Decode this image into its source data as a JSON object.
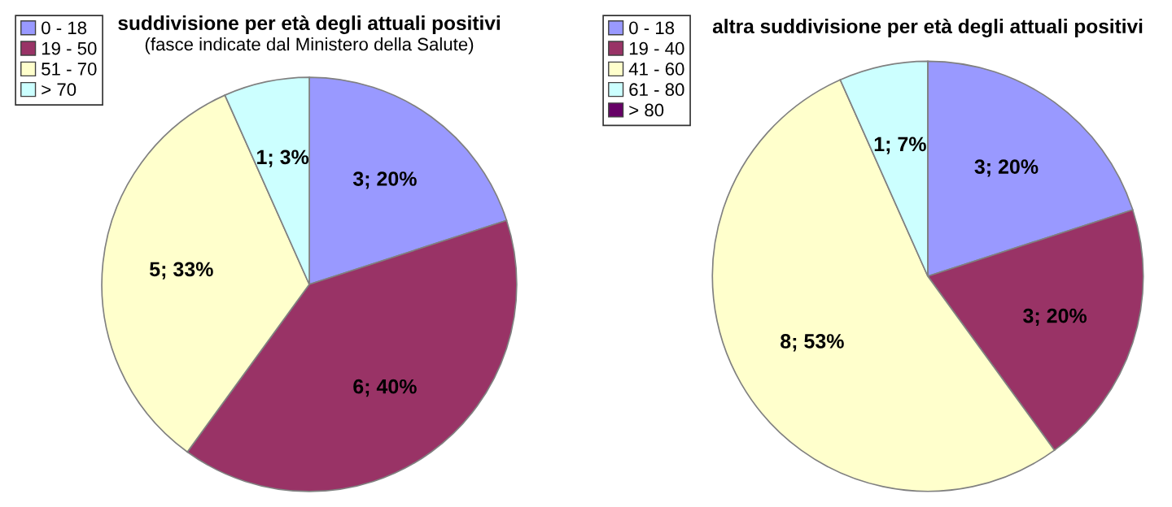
{
  "chart_data": [
    {
      "type": "pie",
      "title": "suddivisione per età degli attuali positivi",
      "subtitle": "(fasce indicate dal Ministero della Salute)",
      "categories": [
        "0 - 18",
        "19 - 50",
        "51 - 70",
        "> 70"
      ],
      "values": [
        3,
        6,
        5,
        1
      ],
      "value_labels": [
        "3; 20%",
        "6; 40%",
        "5; 33%",
        "1; 3%"
      ],
      "colors": [
        "#9999ff",
        "#993366",
        "#ffffcc",
        "#ccffff"
      ],
      "legend": "top left"
    },
    {
      "type": "pie",
      "title": "altra suddivisione per età degli attuali positivi",
      "categories": [
        "0 - 18",
        "19 - 40",
        "41 - 60",
        "61 - 80",
        "> 80"
      ],
      "values": [
        3,
        3,
        8,
        1,
        0
      ],
      "value_labels": [
        "3; 20%",
        "3; 20%",
        "8; 53%",
        "1; 7%",
        null
      ],
      "colors": [
        "#9999ff",
        "#993366",
        "#ffffcc",
        "#ccffff",
        "#660066"
      ],
      "legend": "top left"
    }
  ]
}
